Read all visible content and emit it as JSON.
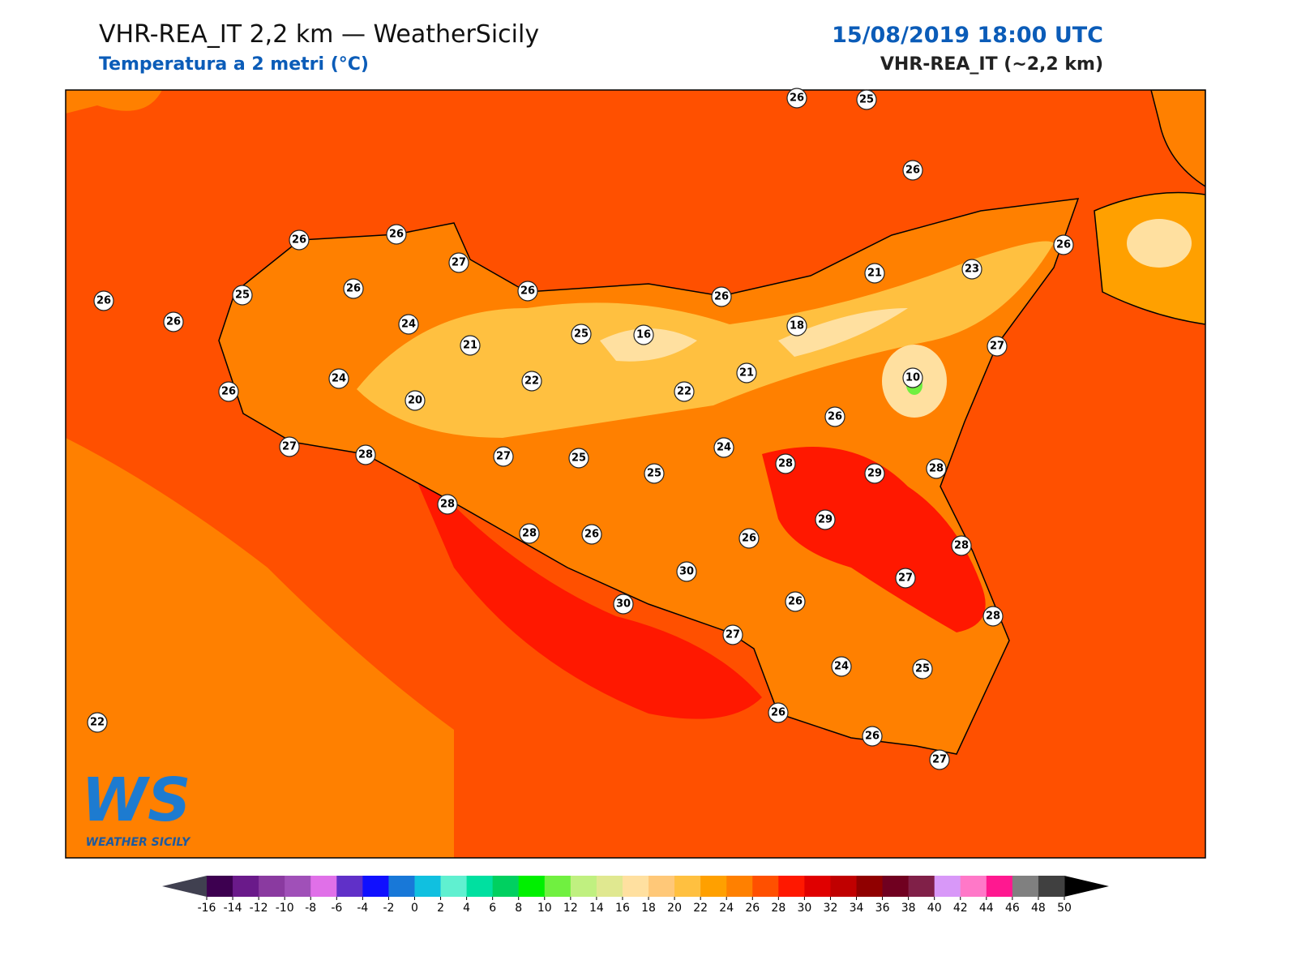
{
  "header": {
    "title": "VHR-REA_IT 2,2 km — WeatherSicily",
    "subtitle": "Temperatura a 2 metri (°C)",
    "datetime": "15/08/2019 18:00 UTC",
    "model": "VHR-REA_IT (~2,2 km)"
  },
  "stations": [
    26,
    25,
    26,
    26,
    26,
    27,
    26,
    26,
    25,
    26,
    26,
    24,
    25,
    16,
    26,
    21,
    23,
    26,
    18,
    27,
    21,
    21,
    10,
    24,
    22,
    22,
    26,
    20,
    26,
    24,
    27,
    28,
    27,
    25,
    25,
    28,
    29,
    28,
    28,
    29,
    28,
    26,
    26,
    28,
    30,
    27,
    30,
    26,
    28,
    27,
    24,
    25,
    26,
    26,
    27,
    22
  ],
  "colorbar": {
    "ticks": [
      -16,
      -14,
      -12,
      -10,
      -8,
      -6,
      -4,
      -2,
      0,
      2,
      4,
      6,
      8,
      10,
      12,
      14,
      16,
      18,
      20,
      22,
      24,
      26,
      28,
      30,
      32,
      34,
      36,
      38,
      40,
      42,
      44,
      46,
      48,
      50
    ],
    "colors": [
      "#3d0050",
      "#6a1a8a",
      "#8a3aa0",
      "#a050b8",
      "#e070e8",
      "#6030c8",
      "#1010ff",
      "#1878d8",
      "#10c0e0",
      "#60f0d0",
      "#00e0a0",
      "#00d060",
      "#00f000",
      "#70f040",
      "#c0f080",
      "#e0e890",
      "#ffe0a0",
      "#ffc878",
      "#ffc040",
      "#ffa000",
      "#ff8000",
      "#ff5000",
      "#ff1800",
      "#e00000",
      "#c00000",
      "#900000",
      "#700020",
      "#802048",
      "#d898f8",
      "#ff78c8",
      "#ff1890",
      "#808080",
      "#404040"
    ],
    "under_color": "#404050",
    "over_color": "#000000"
  },
  "logo": {
    "mark": "WS",
    "name": "WEATHER SICILY"
  }
}
